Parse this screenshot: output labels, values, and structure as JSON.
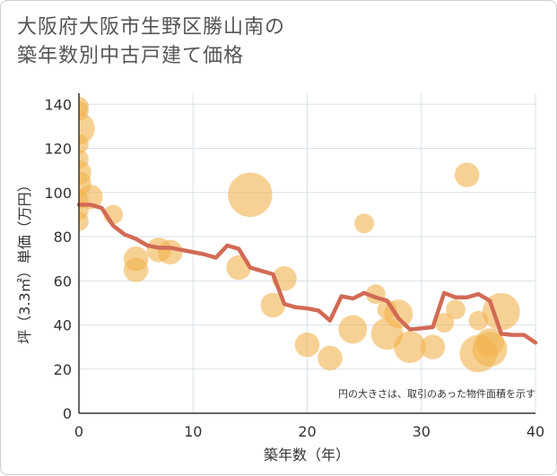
{
  "title_line1": "大阪府大阪市生野区勝山南の",
  "title_line2": "築年数別中古戸建て価格",
  "chart_data": {
    "type": "scatter",
    "title": "大阪府大阪市生野区勝山南の築年数別中古戸建て価格",
    "xlabel": "築年数（年）",
    "ylabel": "坪（3.3㎡）単価（万円）",
    "xlim": [
      0,
      40
    ],
    "ylim": [
      0,
      145
    ],
    "xticks": [
      0,
      10,
      20,
      30,
      40
    ],
    "yticks": [
      0,
      20,
      40,
      60,
      80,
      100,
      120,
      140
    ],
    "note": "円の大きさは、取引のあった物件面積を示す",
    "colors": {
      "bubble": "#f2b34d",
      "line": "#d26a55",
      "grid": "#d8e2ea",
      "axis": "#333333"
    },
    "bubbles": [
      {
        "x": 0,
        "y": 139,
        "s": 1
      },
      {
        "x": 0,
        "y": 137,
        "s": 1
      },
      {
        "x": 0,
        "y": 129,
        "s": 4
      },
      {
        "x": 0,
        "y": 122,
        "s": 1
      },
      {
        "x": 0,
        "y": 115,
        "s": 1
      },
      {
        "x": 0,
        "y": 109,
        "s": 2
      },
      {
        "x": 0,
        "y": 104,
        "s": 2
      },
      {
        "x": 0,
        "y": 97,
        "s": 1
      },
      {
        "x": 0,
        "y": 92,
        "s": 1
      },
      {
        "x": 0,
        "y": 87,
        "s": 1
      },
      {
        "x": 1,
        "y": 98,
        "s": 2
      },
      {
        "x": 3,
        "y": 90,
        "s": 1
      },
      {
        "x": 5,
        "y": 70,
        "s": 2
      },
      {
        "x": 5,
        "y": 65,
        "s": 2
      },
      {
        "x": 7,
        "y": 74,
        "s": 2
      },
      {
        "x": 8,
        "y": 73,
        "s": 2
      },
      {
        "x": 14,
        "y": 66,
        "s": 2
      },
      {
        "x": 15,
        "y": 99,
        "s": 9
      },
      {
        "x": 17,
        "y": 49,
        "s": 2
      },
      {
        "x": 18,
        "y": 61,
        "s": 2
      },
      {
        "x": 20,
        "y": 31,
        "s": 2
      },
      {
        "x": 22,
        "y": 25,
        "s": 2
      },
      {
        "x": 24,
        "y": 38,
        "s": 3
      },
      {
        "x": 25,
        "y": 86,
        "s": 1
      },
      {
        "x": 26,
        "y": 54,
        "s": 1
      },
      {
        "x": 27,
        "y": 47,
        "s": 1
      },
      {
        "x": 27,
        "y": 36,
        "s": 4
      },
      {
        "x": 28,
        "y": 45,
        "s": 3
      },
      {
        "x": 29,
        "y": 30,
        "s": 4
      },
      {
        "x": 31,
        "y": 30,
        "s": 2
      },
      {
        "x": 32,
        "y": 41,
        "s": 1
      },
      {
        "x": 33,
        "y": 47,
        "s": 1
      },
      {
        "x": 34,
        "y": 108,
        "s": 2
      },
      {
        "x": 35,
        "y": 42,
        "s": 1
      },
      {
        "x": 35,
        "y": 27,
        "s": 6
      },
      {
        "x": 36,
        "y": 29,
        "s": 5
      },
      {
        "x": 36,
        "y": 32,
        "s": 3
      },
      {
        "x": 37,
        "y": 46,
        "s": 6
      }
    ],
    "line": {
      "x": [
        0,
        1,
        2,
        3,
        4,
        5,
        6,
        7,
        8,
        9,
        10,
        11,
        12,
        13,
        14,
        15,
        16,
        17,
        18,
        19,
        20,
        21,
        22,
        23,
        24,
        25,
        26,
        27,
        28,
        29,
        30,
        31,
        32,
        33,
        34,
        35,
        36,
        37,
        38,
        39,
        40
      ],
      "y": [
        94.5,
        94.5,
        93,
        85,
        81,
        79,
        76,
        75,
        75,
        74,
        73,
        72,
        70.5,
        76,
        74.5,
        66,
        64.5,
        63,
        49.5,
        48,
        47.5,
        46.5,
        42,
        53,
        52,
        54.5,
        52.5,
        51,
        43,
        38,
        38.5,
        39,
        54.5,
        52.5,
        52.5,
        54,
        51,
        36,
        35.5,
        35.5,
        32
      ]
    }
  }
}
